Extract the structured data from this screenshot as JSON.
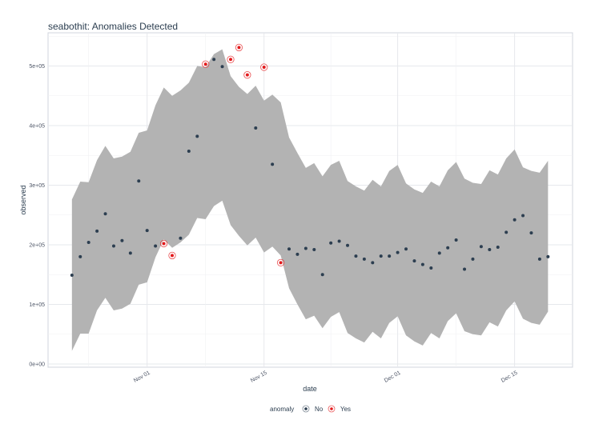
{
  "chart_data": {
    "type": "scatter",
    "title": "seabothit: Anomalies Detected",
    "xlabel": "date",
    "ylabel": "observed",
    "x_tick_labels": [
      "Nov 01",
      "Nov 15",
      "Dec 01",
      "Dec 15"
    ],
    "y_tick_labels": [
      "0e+00",
      "1e+05",
      "2e+05",
      "3e+05",
      "4e+05",
      "5e+05"
    ],
    "y_ticks": [
      0,
      100000,
      200000,
      300000,
      400000,
      500000
    ],
    "ylim": [
      0,
      555000
    ],
    "grid": true,
    "legend": {
      "title": "anomaly",
      "placement": "bottom",
      "entries": [
        "No",
        "Yes"
      ]
    },
    "colors": {
      "normal": "#2c3e50",
      "anomaly": "#e31a1c",
      "band": "#b3b3b3"
    },
    "x": [
      "Oct 23",
      "Oct 24",
      "Oct 25",
      "Oct 26",
      "Oct 27",
      "Oct 28",
      "Oct 29",
      "Oct 30",
      "Oct 31",
      "Nov 01",
      "Nov 02",
      "Nov 03",
      "Nov 04",
      "Nov 05",
      "Nov 06",
      "Nov 07",
      "Nov 08",
      "Nov 09",
      "Nov 10",
      "Nov 11",
      "Nov 12",
      "Nov 13",
      "Nov 14",
      "Nov 15",
      "Nov 16",
      "Nov 17",
      "Nov 18",
      "Nov 19",
      "Nov 20",
      "Nov 21",
      "Nov 22",
      "Nov 23",
      "Nov 24",
      "Nov 25",
      "Nov 26",
      "Nov 27",
      "Nov 28",
      "Nov 29",
      "Nov 30",
      "Dec 01",
      "Dec 02",
      "Dec 03",
      "Dec 04",
      "Dec 05",
      "Dec 06",
      "Dec 07",
      "Dec 08",
      "Dec 09",
      "Dec 10",
      "Dec 11",
      "Dec 12",
      "Dec 13",
      "Dec 14",
      "Dec 15",
      "Dec 16",
      "Dec 17",
      "Dec 18",
      "Dec 19"
    ],
    "observed": [
      149000,
      180000,
      204000,
      223000,
      252000,
      198000,
      207000,
      186000,
      307000,
      224000,
      198000,
      202000,
      182000,
      211000,
      357000,
      382000,
      503000,
      511000,
      499000,
      511000,
      531000,
      485000,
      396000,
      498000,
      335000,
      170000,
      193000,
      184000,
      194000,
      192000,
      150000,
      203000,
      206000,
      199000,
      181000,
      176000,
      170000,
      181000,
      181000,
      187000,
      193000,
      173000,
      167000,
      161000,
      186000,
      195000,
      208000,
      159000,
      176000,
      197000,
      192000,
      196000,
      221000,
      242000,
      249000,
      220000,
      176000,
      180000
    ],
    "anomaly": [
      "No",
      "No",
      "No",
      "No",
      "No",
      "No",
      "No",
      "No",
      "No",
      "No",
      "No",
      "Yes",
      "Yes",
      "No",
      "No",
      "No",
      "Yes",
      "No",
      "No",
      "Yes",
      "Yes",
      "Yes",
      "No",
      "Yes",
      "No",
      "Yes",
      "No",
      "No",
      "No",
      "No",
      "No",
      "No",
      "No",
      "No",
      "No",
      "No",
      "No",
      "No",
      "No",
      "No",
      "No",
      "No",
      "No",
      "No",
      "No",
      "No",
      "No",
      "No",
      "No",
      "No",
      "No",
      "No",
      "No",
      "No",
      "No",
      "No",
      "No",
      "No"
    ],
    "recomposed_l2": [
      22000,
      51000,
      51000,
      90000,
      111000,
      90000,
      93000,
      101000,
      133000,
      137000,
      179000,
      209000,
      195000,
      204000,
      217000,
      245000,
      243000,
      265000,
      274000,
      233000,
      215000,
      199000,
      212000,
      187000,
      197000,
      182000,
      127000,
      100000,
      75000,
      81000,
      60000,
      79000,
      87000,
      52000,
      43000,
      36000,
      54000,
      43000,
      69000,
      80000,
      48000,
      38000,
      31000,
      52000,
      43000,
      72000,
      85000,
      55000,
      50000,
      48000,
      70000,
      63000,
      90000,
      105000,
      76000,
      69000,
      66000,
      88000
    ],
    "recomposed_l1": [
      276000,
      306000,
      305000,
      342000,
      366000,
      345000,
      348000,
      356000,
      388000,
      392000,
      434000,
      464000,
      450000,
      459000,
      472000,
      500000,
      498000,
      520000,
      528000,
      483000,
      465000,
      453000,
      467000,
      442000,
      452000,
      439000,
      380000,
      354000,
      329000,
      337000,
      315000,
      334000,
      341000,
      307000,
      298000,
      291000,
      309000,
      298000,
      324000,
      334000,
      303000,
      293000,
      287000,
      306000,
      298000,
      325000,
      339000,
      311000,
      304000,
      302000,
      325000,
      318000,
      345000,
      360000,
      330000,
      324000,
      321000,
      341000
    ]
  }
}
